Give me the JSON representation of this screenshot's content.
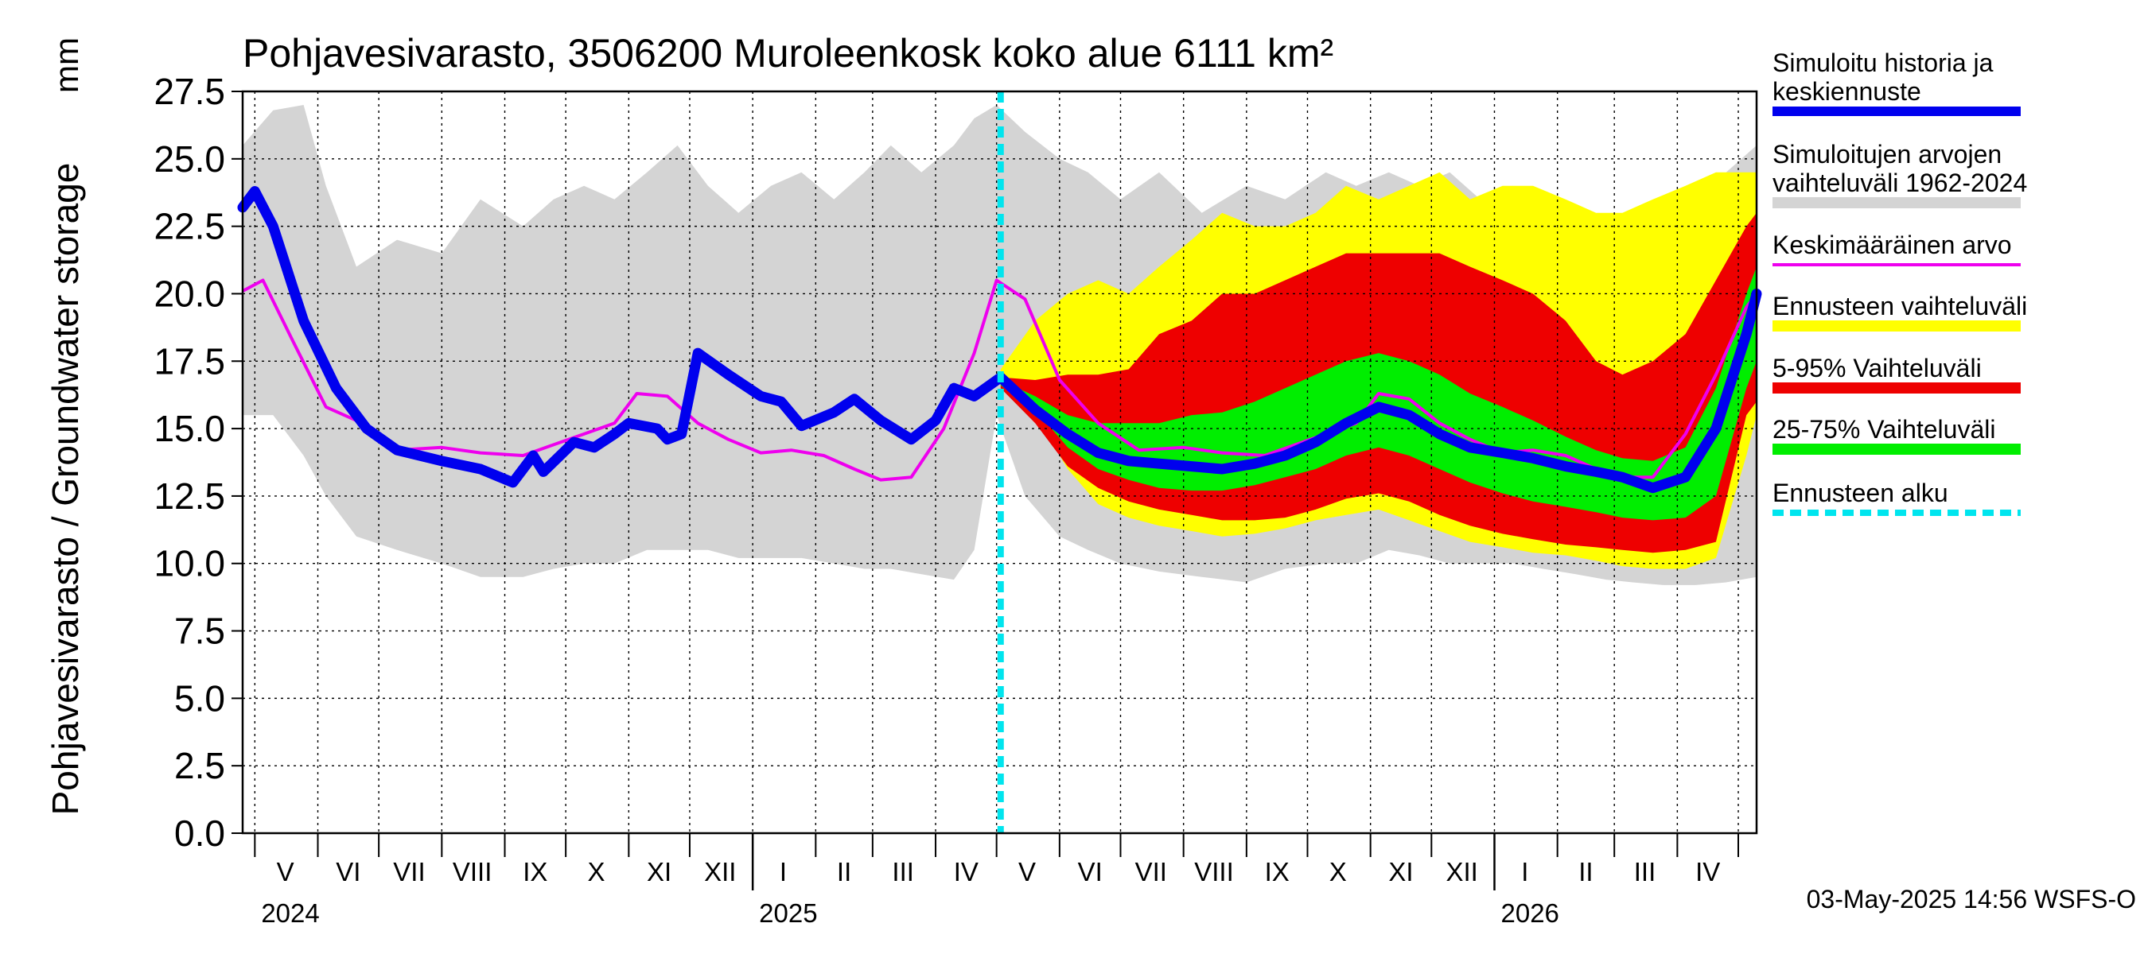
{
  "chart_data": {
    "type": "area",
    "title": "Pohjavesivarasto, 3506200 Muroleenkosk koko alue 6111 km²",
    "ylabel": "Pohjavesivarasto / Groundwater storage",
    "yunit": "mm",
    "xlabel": "",
    "ylim": [
      0,
      27.5
    ],
    "xlim": [
      "2024-04-25",
      "2026-05-10"
    ],
    "yticks": [
      "0.0",
      "2.5",
      "5.0",
      "7.5",
      "10.0",
      "12.5",
      "15.0",
      "17.5",
      "20.0",
      "22.5",
      "25.0",
      "27.5"
    ],
    "month_labels": [
      {
        "label": "V",
        "date": "2024-05-16"
      },
      {
        "label": "VI",
        "date": "2024-06-16"
      },
      {
        "label": "VII",
        "date": "2024-07-16"
      },
      {
        "label": "VIII",
        "date": "2024-08-16"
      },
      {
        "label": "IX",
        "date": "2024-09-16"
      },
      {
        "label": "X",
        "date": "2024-10-16"
      },
      {
        "label": "XI",
        "date": "2024-11-16"
      },
      {
        "label": "XII",
        "date": "2024-12-16"
      },
      {
        "label": "I",
        "date": "2025-01-16"
      },
      {
        "label": "II",
        "date": "2025-02-15"
      },
      {
        "label": "III",
        "date": "2025-03-16"
      },
      {
        "label": "IV",
        "date": "2025-04-16"
      },
      {
        "label": "V",
        "date": "2025-05-16"
      },
      {
        "label": "VI",
        "date": "2025-06-16"
      },
      {
        "label": "VII",
        "date": "2025-07-16"
      },
      {
        "label": "VIII",
        "date": "2025-08-16"
      },
      {
        "label": "IX",
        "date": "2025-09-16"
      },
      {
        "label": "X",
        "date": "2025-10-16"
      },
      {
        "label": "XI",
        "date": "2025-11-16"
      },
      {
        "label": "XII",
        "date": "2025-12-16"
      },
      {
        "label": "I",
        "date": "2026-01-16"
      },
      {
        "label": "II",
        "date": "2026-02-15"
      },
      {
        "label": "III",
        "date": "2026-03-16"
      },
      {
        "label": "IV",
        "date": "2026-04-16"
      }
    ],
    "year_labels": [
      {
        "label": "2024",
        "date": "2024-05-01"
      },
      {
        "label": "2025",
        "date": "2025-01-01"
      },
      {
        "label": "2026",
        "date": "2026-01-01"
      }
    ],
    "forecast_start": "2025-05-03",
    "footer": "03-May-2025 14:56 WSFS-O",
    "colors": {
      "history": "#0000ee",
      "sim_range": "#d4d4d4",
      "mean": "#ee00ee",
      "forecast_range": "#ffff00",
      "p5_95": "#ee0000",
      "p25_75": "#00ee00",
      "forecast_start": "#00e5ee"
    },
    "legend": [
      {
        "label": "Simuloitu historia ja keskiennuste",
        "series": "history"
      },
      {
        "label": "Simuloitujen arvojen vaihteluväli 1962-2024",
        "series": "sim_range"
      },
      {
        "label": "Keskimääräinen arvo",
        "series": "mean"
      },
      {
        "label": "Ennusteen vaihteluväli",
        "series": "forecast_range"
      },
      {
        "label": "5-95% Vaihteluväli",
        "series": "p5_95"
      },
      {
        "label": "25-75% Vaihteluväli",
        "series": "p25_75"
      },
      {
        "label": "Ennusteen alku",
        "series": "forecast_start"
      }
    ],
    "series": {
      "sim_range": {
        "x": [
          "2024-04-25",
          "2024-05-10",
          "2024-05-25",
          "2024-06-05",
          "2024-06-20",
          "2024-07-10",
          "2024-08-01",
          "2024-08-20",
          "2024-09-10",
          "2024-09-25",
          "2024-10-10",
          "2024-10-25",
          "2024-11-10",
          "2024-11-25",
          "2024-12-10",
          "2024-12-25",
          "2025-01-10",
          "2025-01-25",
          "2025-02-10",
          "2025-02-25",
          "2025-03-10",
          "2025-03-25",
          "2025-04-10",
          "2025-04-20",
          "2025-05-01",
          "2025-05-15",
          "2025-06-01",
          "2025-06-15",
          "2025-07-01",
          "2025-07-20",
          "2025-08-10",
          "2025-09-01",
          "2025-09-20",
          "2025-10-10",
          "2025-10-25",
          "2025-11-10",
          "2025-11-25",
          "2025-12-10",
          "2025-12-25",
          "2026-01-10",
          "2026-01-25",
          "2026-02-10",
          "2026-02-25",
          "2026-03-10",
          "2026-03-25",
          "2026-04-10",
          "2026-04-25",
          "2026-05-10"
        ],
        "low": [
          15.5,
          15.5,
          14.0,
          12.5,
          11.0,
          10.5,
          10.0,
          9.5,
          9.5,
          9.8,
          10.0,
          10.0,
          10.5,
          10.5,
          10.5,
          10.2,
          10.2,
          10.2,
          10.0,
          9.8,
          9.8,
          9.6,
          9.4,
          10.5,
          15.5,
          12.5,
          11.0,
          10.5,
          10.0,
          9.7,
          9.5,
          9.3,
          9.8,
          10.0,
          10.0,
          10.5,
          10.3,
          10.0,
          10.0,
          10.0,
          9.8,
          9.6,
          9.4,
          9.3,
          9.2,
          9.2,
          9.3,
          9.5
        ],
        "high": [
          25.5,
          26.8,
          27.0,
          24.0,
          21.0,
          22.0,
          21.5,
          23.5,
          22.5,
          23.5,
          24.0,
          23.5,
          24.5,
          25.5,
          24.0,
          23.0,
          24.0,
          24.5,
          23.5,
          24.5,
          25.5,
          24.5,
          25.5,
          26.5,
          27.0,
          26.0,
          25.0,
          24.5,
          23.5,
          24.5,
          23.0,
          24.0,
          23.5,
          24.5,
          24.0,
          24.5,
          24.0,
          24.5,
          23.5,
          24.0,
          23.5,
          23.0,
          22.5,
          22.0,
          23.0,
          23.5,
          24.5,
          25.5
        ]
      },
      "forecast_range": {
        "x": [
          "2025-05-03",
          "2025-05-20",
          "2025-06-05",
          "2025-06-20",
          "2025-07-05",
          "2025-07-20",
          "2025-08-05",
          "2025-08-20",
          "2025-09-05",
          "2025-09-20",
          "2025-10-05",
          "2025-10-20",
          "2025-11-05",
          "2025-11-20",
          "2025-12-05",
          "2025-12-20",
          "2026-01-05",
          "2026-01-20",
          "2026-02-05",
          "2026-02-20",
          "2026-03-05",
          "2026-03-20",
          "2026-04-05",
          "2026-04-20",
          "2026-05-05",
          "2026-05-10"
        ],
        "low": [
          16.5,
          15.5,
          13.5,
          12.2,
          11.7,
          11.4,
          11.2,
          11.0,
          11.1,
          11.3,
          11.6,
          11.8,
          12.0,
          11.6,
          11.2,
          10.8,
          10.6,
          10.4,
          10.3,
          10.1,
          9.9,
          9.8,
          9.8,
          10.2,
          14.0,
          15.5
        ],
        "high": [
          17.2,
          19.0,
          20.0,
          20.5,
          20.0,
          21.0,
          22.0,
          23.0,
          22.5,
          22.5,
          23.0,
          24.0,
          23.5,
          24.0,
          24.5,
          23.5,
          24.0,
          24.0,
          23.5,
          23.0,
          23.0,
          23.5,
          24.0,
          24.5,
          24.5,
          24.5
        ]
      },
      "p5_95": {
        "x": [
          "2025-05-03",
          "2025-05-20",
          "2025-06-05",
          "2025-06-20",
          "2025-07-05",
          "2025-07-20",
          "2025-08-05",
          "2025-08-20",
          "2025-09-05",
          "2025-09-20",
          "2025-10-05",
          "2025-10-20",
          "2025-11-05",
          "2025-11-20",
          "2025-12-05",
          "2025-12-20",
          "2026-01-05",
          "2026-01-20",
          "2026-02-05",
          "2026-02-20",
          "2026-03-05",
          "2026-03-20",
          "2026-04-05",
          "2026-04-20",
          "2026-05-05",
          "2026-05-10"
        ],
        "low": [
          16.5,
          15.2,
          13.6,
          12.8,
          12.3,
          12.0,
          11.8,
          11.6,
          11.6,
          11.7,
          12.0,
          12.4,
          12.6,
          12.3,
          11.8,
          11.4,
          11.1,
          10.9,
          10.7,
          10.6,
          10.5,
          10.4,
          10.5,
          10.8,
          15.5,
          16.0
        ],
        "high": [
          16.9,
          16.8,
          17.0,
          17.0,
          17.2,
          18.5,
          19.0,
          20.0,
          20.0,
          20.5,
          21.0,
          21.5,
          21.5,
          21.5,
          21.5,
          21.0,
          20.5,
          20.0,
          19.0,
          17.5,
          17.0,
          17.5,
          18.5,
          20.5,
          22.5,
          23.0
        ]
      },
      "p25_75": {
        "x": [
          "2025-05-03",
          "2025-05-20",
          "2025-06-05",
          "2025-06-20",
          "2025-07-05",
          "2025-07-20",
          "2025-08-05",
          "2025-08-20",
          "2025-09-05",
          "2025-09-20",
          "2025-10-05",
          "2025-10-20",
          "2025-11-05",
          "2025-11-20",
          "2025-12-05",
          "2025-12-20",
          "2026-01-05",
          "2026-01-20",
          "2026-02-05",
          "2026-02-20",
          "2026-03-05",
          "2026-03-20",
          "2026-04-05",
          "2026-04-20",
          "2026-05-05",
          "2026-05-10"
        ],
        "low": [
          16.6,
          15.7,
          14.3,
          13.5,
          13.1,
          12.8,
          12.7,
          12.7,
          12.9,
          13.2,
          13.5,
          14.0,
          14.3,
          14.0,
          13.5,
          13.0,
          12.6,
          12.3,
          12.1,
          11.9,
          11.7,
          11.6,
          11.7,
          12.5,
          16.5,
          17.5
        ],
        "high": [
          16.8,
          16.2,
          15.5,
          15.2,
          15.2,
          15.2,
          15.5,
          15.6,
          16.0,
          16.5,
          17.0,
          17.5,
          17.8,
          17.5,
          17.0,
          16.3,
          15.8,
          15.3,
          14.7,
          14.2,
          13.9,
          13.8,
          14.3,
          16.5,
          20.0,
          21.0
        ]
      },
      "mean": {
        "x": [
          "2024-04-25",
          "2024-05-05",
          "2024-05-20",
          "2024-06-05",
          "2024-06-20",
          "2024-07-10",
          "2024-08-01",
          "2024-08-20",
          "2024-09-10",
          "2024-09-25",
          "2024-10-10",
          "2024-10-25",
          "2024-11-05",
          "2024-11-20",
          "2024-12-05",
          "2024-12-20",
          "2025-01-05",
          "2025-01-20",
          "2025-02-05",
          "2025-02-20",
          "2025-03-05",
          "2025-03-20",
          "2025-04-05",
          "2025-04-20",
          "2025-05-01",
          "2025-05-15",
          "2025-06-01",
          "2025-06-20",
          "2025-07-10",
          "2025-08-01",
          "2025-08-20",
          "2025-09-10",
          "2025-09-25",
          "2025-10-10",
          "2025-10-25",
          "2025-11-05",
          "2025-11-20",
          "2025-12-05",
          "2025-12-20",
          "2026-01-05",
          "2026-01-20",
          "2026-02-05",
          "2026-02-20",
          "2026-03-05",
          "2026-03-20",
          "2026-04-05",
          "2026-04-20",
          "2026-05-05",
          "2026-05-10"
        ],
        "y": [
          20.1,
          20.5,
          18.2,
          15.8,
          15.3,
          14.2,
          14.3,
          14.1,
          14.0,
          14.4,
          14.8,
          15.2,
          16.3,
          16.2,
          15.2,
          14.6,
          14.1,
          14.2,
          14.0,
          13.5,
          13.1,
          13.2,
          15.0,
          17.8,
          20.5,
          19.8,
          16.8,
          15.2,
          14.2,
          14.3,
          14.1,
          14.0,
          14.4,
          14.8,
          15.2,
          16.3,
          16.1,
          15.2,
          14.6,
          14.1,
          14.2,
          14.0,
          13.5,
          13.2,
          13.2,
          14.8,
          17.0,
          19.5,
          20.0
        ]
      },
      "history": {
        "x": [
          "2024-04-25",
          "2024-05-01",
          "2024-05-10",
          "2024-05-25",
          "2024-06-10",
          "2024-06-25",
          "2024-07-10",
          "2024-08-01",
          "2024-08-20",
          "2024-09-05",
          "2024-09-15",
          "2024-09-20",
          "2024-10-05",
          "2024-10-15",
          "2024-10-25",
          "2024-11-01",
          "2024-11-15",
          "2024-11-20",
          "2024-11-27",
          "2024-12-05",
          "2024-12-20",
          "2025-01-05",
          "2025-01-15",
          "2025-01-25",
          "2025-02-10",
          "2025-02-20",
          "2025-03-05",
          "2025-03-20",
          "2025-04-01",
          "2025-04-10",
          "2025-04-20",
          "2025-05-03",
          "2025-05-20",
          "2025-06-05",
          "2025-06-20",
          "2025-07-05",
          "2025-07-20",
          "2025-08-05",
          "2025-08-20",
          "2025-09-05",
          "2025-09-20",
          "2025-10-05",
          "2025-10-20",
          "2025-11-05",
          "2025-11-20",
          "2025-12-05",
          "2025-12-20",
          "2026-01-05",
          "2026-01-20",
          "2026-02-05",
          "2026-02-20",
          "2026-03-05",
          "2026-03-20",
          "2026-04-05",
          "2026-04-20",
          "2026-05-05",
          "2026-05-10"
        ],
        "y": [
          23.2,
          23.8,
          22.5,
          19.0,
          16.5,
          15.0,
          14.2,
          13.8,
          13.5,
          13.0,
          14.0,
          13.4,
          14.5,
          14.3,
          14.8,
          15.2,
          15.0,
          14.6,
          14.8,
          17.8,
          17.0,
          16.2,
          16.0,
          15.1,
          15.6,
          16.1,
          15.3,
          14.6,
          15.3,
          16.5,
          16.2,
          16.9,
          15.7,
          14.8,
          14.1,
          13.8,
          13.7,
          13.6,
          13.5,
          13.7,
          14.0,
          14.5,
          15.2,
          15.8,
          15.5,
          14.8,
          14.3,
          14.1,
          13.9,
          13.6,
          13.4,
          13.2,
          12.8,
          13.2,
          15.0,
          18.5,
          20.0
        ]
      }
    }
  }
}
